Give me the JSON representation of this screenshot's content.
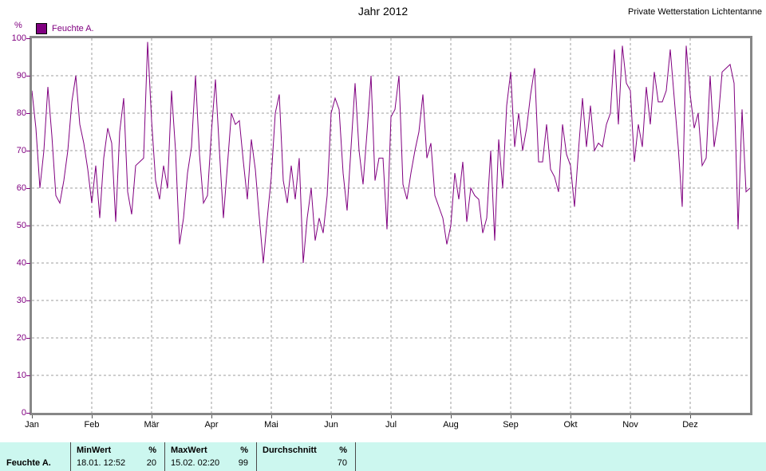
{
  "header": {
    "title": "Jahr 2012",
    "station": "Private Wetterstation Lichtentanne"
  },
  "legend": {
    "label": "Feuchte A.",
    "unit": "%"
  },
  "chart_data": {
    "type": "line",
    "title": "Jahr 2012",
    "ylabel": "%",
    "ylim": [
      0,
      100
    ],
    "y_ticks": [
      0,
      10,
      20,
      30,
      40,
      50,
      60,
      70,
      80,
      90,
      100
    ],
    "x_tick_labels": [
      "Jan",
      "Feb",
      "Mär",
      "Apr",
      "Mai",
      "Jun",
      "Jul",
      "Aug",
      "Sep",
      "Okt",
      "Nov",
      "Dez"
    ],
    "grid": "dashed",
    "legend_position": "top-left",
    "series": [
      {
        "name": "Feuchte A.",
        "color": "#800080",
        "values": [
          86,
          76,
          60,
          70,
          87,
          74,
          58,
          56,
          62,
          70,
          83,
          90,
          77,
          72,
          65,
          56,
          66,
          52,
          68,
          76,
          72,
          51,
          75,
          84,
          59,
          53,
          66,
          67,
          68,
          99,
          78,
          62,
          57,
          66,
          60,
          86,
          70,
          45,
          52,
          64,
          71,
          90,
          69,
          56,
          58,
          75,
          89,
          70,
          52,
          66,
          80,
          77,
          78,
          67,
          57,
          73,
          65,
          52,
          40,
          52,
          63,
          80,
          85,
          62,
          56,
          66,
          57,
          68,
          40,
          52,
          60,
          46,
          52,
          48,
          58,
          80,
          84,
          81,
          64,
          54,
          71,
          88,
          70,
          61,
          75,
          90,
          62,
          68,
          68,
          49,
          79,
          81,
          90,
          61,
          57,
          64,
          70,
          75,
          85,
          68,
          72,
          58,
          55,
          52,
          45,
          50,
          64,
          57,
          67,
          51,
          60,
          58,
          57,
          48,
          52,
          70,
          46,
          73,
          60,
          82,
          91,
          71,
          80,
          70,
          76,
          85,
          92,
          67,
          67,
          77,
          65,
          63,
          59,
          77,
          69,
          66,
          55,
          70,
          84,
          71,
          82,
          70,
          72,
          71,
          77,
          80,
          97,
          77,
          98,
          88,
          86,
          67,
          77,
          71,
          87,
          77,
          91,
          83,
          83,
          86,
          97,
          84,
          71,
          55,
          98,
          85,
          76,
          80,
          66,
          68,
          90,
          71,
          78,
          91,
          92,
          93,
          88,
          49,
          81,
          59,
          60
        ]
      }
    ]
  },
  "table": {
    "row_label": "Feuchte A.",
    "columns": [
      {
        "header": "MinWert",
        "unit": "%",
        "time": "18.01. 12:52",
        "value": "20"
      },
      {
        "header": "MaxWert",
        "unit": "%",
        "time": "15.02. 02:20",
        "value": "99"
      },
      {
        "header": "Durchschnitt",
        "unit": "%",
        "time": "",
        "value": "70"
      }
    ]
  },
  "colors": {
    "series": "#800080",
    "axis_border": "#878787",
    "gridline": "#9c9c9c",
    "axis_label": "#800080",
    "table_bg": "#ccf7ef",
    "table_divider": "#4a4a4a",
    "text": "#000000"
  }
}
